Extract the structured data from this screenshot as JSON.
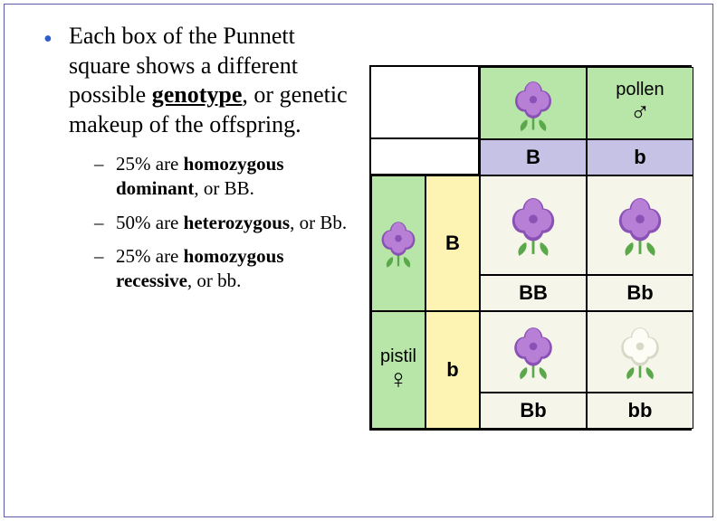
{
  "text": {
    "main_pre": "Each box of the Punnett square shows a different possible ",
    "main_bold": "genotype",
    "main_post": ", or genetic makeup of the offspring.",
    "sub1_a": "25% are ",
    "sub1_b": "homozygous dominant",
    "sub1_c": ", or BB.",
    "sub2_a": "50% are ",
    "sub2_b": "heterozygous",
    "sub2_c": ", or Bb.",
    "sub3_a": "25% are ",
    "sub3_b": "homozygous recessive",
    "sub3_c": ", or bb."
  },
  "diagram": {
    "pollen_label": "pollen",
    "pistil_label": "pistil",
    "male_symbol": "♂",
    "female_symbol": "♀",
    "col_headers": [
      "B",
      "b"
    ],
    "row_headers": [
      "B",
      "b"
    ],
    "cells": {
      "r1c1": "BB",
      "r1c2": "Bb",
      "r2c1": "Bb",
      "r2c2": "bb"
    },
    "colors": {
      "green": "#b7e6a8",
      "yellow": "#fdf4b3",
      "lavender": "#c6c2e6",
      "cream": "#f6f5ea",
      "purple_flower": "#b87fd6",
      "purple_dark": "#8a52b5",
      "white_flower": "#fdfdf5",
      "white_shadow": "#d8d8c8",
      "leaf": "#5aa84a",
      "border": "#000000"
    }
  }
}
